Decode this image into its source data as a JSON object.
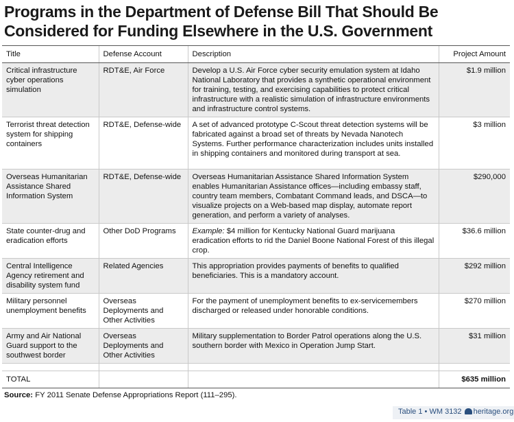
{
  "title": "Programs in the Department of Defense Bill That Should Be Considered for Funding Elsewhere in the U.S. Government",
  "headers": [
    "Title",
    "Defense Account",
    "Description",
    "Project Amount"
  ],
  "rows": [
    {
      "title": "Critical infrastructure cyber operations simulation",
      "account": "RDT&E, Air Force",
      "description": "Develop a U.S. Air Force cyber security emulation system at Idaho National Laboratory that provides a synthetic operational environment for training, testing, and exercising capabilities to protect critical infrastructure with a realistic simulation of infrastructure environments and infrastructure control systems.",
      "amount": "$1.9 million"
    },
    {
      "title": "Terrorist threat detection system for shipping containers",
      "account": "RDT&E, Defense-wide",
      "description": "A set of advanced prototype C-Scout threat detection systems will be fabricated against a broad set of threats by Nevada Nanotech Systems. Further performance characterization includes units installed in shipping containers and monitored during transport at sea.",
      "amount": "$3 million"
    },
    {
      "title": "Overseas Humanitarian Assistance Shared Information System",
      "account": "RDT&E, Defense-wide",
      "description": "Overseas Humanitarian Assistance Shared Information System enables Humanitarian Assistance offices—including embassy staff, country team members, Combatant Command leads, and DSCA—to visualize projects on a Web-based map display, automate report generation, and perform a variety of analyses.",
      "amount": "$290,000"
    },
    {
      "title": "State counter-drug and eradication efforts",
      "account": "Other DoD Programs",
      "description_prefix": "Example:",
      "description": " $4 million for Kentucky National Guard marijuana eradication efforts to rid the Daniel Boone National Forest of this illegal crop.",
      "amount": "$36.6 million"
    },
    {
      "title": "Central Intelligence Agency retirement and disability system fund",
      "account": "Related Agencies",
      "description": "This appropriation provides payments of benefits to qualified beneficiaries. This is a mandatory account.",
      "amount": "$292 million"
    },
    {
      "title": "Military personnel unemployment benefits",
      "account": "Overseas Deployments and Other Activities",
      "description": "For the payment of unemployment benefits to ex-servicemembers discharged or released under honorable conditions.",
      "amount": "$270 million"
    },
    {
      "title": "Army and Air National Guard support to the southwest border",
      "account": "Overseas Deployments and Other Activities",
      "description": "Military supplementation to Border Patrol operations along the U.S. southern border with Mexico in Operation Jump Start.",
      "amount": "$31 million"
    }
  ],
  "total": {
    "label": "TOTAL",
    "amount": "$635 million"
  },
  "source": {
    "label": "Source:",
    "text": " FY 2011 Senate Defense Appropriations Report (111–295)."
  },
  "footer": {
    "table": "Table 1",
    "sep1": "•",
    "report": "WM 3132",
    "site": "heritage.org"
  },
  "colors": {
    "row_shade": "#ececec",
    "footer_text": "#2a4f7e",
    "footer_bg": "#eef1f5"
  }
}
